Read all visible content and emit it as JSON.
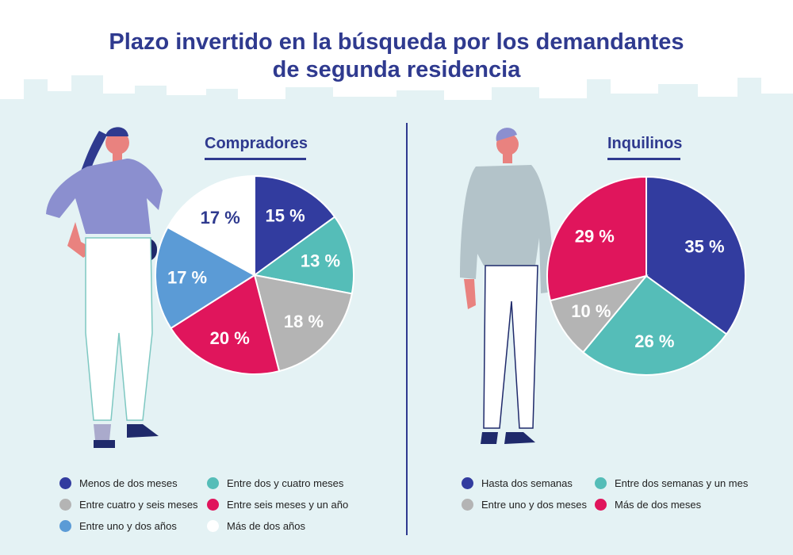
{
  "title_line1": "Plazo invertido en la búsqueda por los demandantes",
  "title_line2": "de segunda residencia",
  "colors": {
    "background": "#e4f2f4",
    "accent": "#2f3a8f"
  },
  "chart_data": [
    {
      "type": "pie",
      "title": "Compradores",
      "unit": "%",
      "categories": [
        "Menos de dos meses",
        "Entre dos y cuatro meses",
        "Entre cuatro y seis meses",
        "Entre seis meses y un año",
        "Entre uno y dos años",
        "Más de dos años"
      ],
      "values": [
        15,
        13,
        18,
        20,
        17,
        17
      ],
      "labels": [
        "15 %",
        "13 %",
        "18 %",
        "20 %",
        "17 %",
        "17 %"
      ],
      "colors": [
        "#323c9f",
        "#55bdb8",
        "#b4b4b4",
        "#e0155c",
        "#5b9bd6",
        "#ffffff"
      ],
      "label_colors": [
        "#ffffff",
        "#ffffff",
        "#ffffff",
        "#ffffff",
        "#ffffff",
        "#2f3a8f"
      ],
      "legend_placement": "bottom"
    },
    {
      "type": "pie",
      "title": "Inquilinos",
      "unit": "%",
      "categories": [
        "Hasta dos semanas",
        "Entre dos semanas y un mes",
        "Entre uno y dos meses",
        "Más de dos meses"
      ],
      "values": [
        35,
        26,
        10,
        29
      ],
      "labels": [
        "35 %",
        "26 %",
        "10 %",
        "29 %"
      ],
      "colors": [
        "#323c9f",
        "#55bdb8",
        "#b4b4b4",
        "#e0155c"
      ],
      "label_colors": [
        "#ffffff",
        "#ffffff",
        "#ffffff",
        "#ffffff"
      ],
      "legend_placement": "bottom"
    }
  ]
}
